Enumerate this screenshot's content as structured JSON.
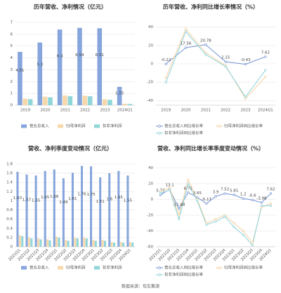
{
  "chart_data": [
    {
      "type": "bar",
      "title": "历年营收、净利情况（亿元）",
      "categories": [
        "2019",
        "2020",
        "2021",
        "2022",
        "2023",
        "2024Q1"
      ],
      "series": [
        {
          "name": "营业总收入",
          "color": "#86a5dc",
          "values": [
            4.51,
            5.3,
            6.4,
            6.54,
            6.51,
            1.55
          ]
        },
        {
          "name": "归母净利润",
          "color": "#f7d8ab",
          "values": [
            0.55,
            0.72,
            0.82,
            0.8,
            0.5,
            0.12
          ]
        },
        {
          "name": "扣非净利润",
          "color": "#8fd6d9",
          "values": [
            0.5,
            0.66,
            0.76,
            0.75,
            0.45,
            0.1
          ]
        }
      ],
      "ylim": [
        0,
        7
      ],
      "yticks": [
        0,
        1,
        2,
        3,
        4,
        5,
        6,
        7
      ],
      "grid": true
    },
    {
      "type": "line",
      "title": "历年营收、净利同比增长率情况（%）",
      "categories": [
        "2019",
        "2020",
        "2021",
        "2022",
        "2023",
        "2024Q1"
      ],
      "series": [
        {
          "name": "营业总收入同比增长率",
          "color": "#7493d4",
          "values": [
            -0.22,
            17.56,
            20.78,
            2.15,
            -0.43,
            7.62
          ]
        },
        {
          "name": "归母净利润同比增长率",
          "color": "#f5d19f",
          "values": [
            -15,
            38,
            12,
            -2,
            -38,
            -14
          ]
        },
        {
          "name": "扣非净利润同比增长率",
          "color": "#8bd2da",
          "values": [
            -20,
            35,
            10,
            -3,
            -36,
            -7
          ]
        }
      ],
      "ylim": [
        -45,
        45
      ],
      "yticks": [
        -40,
        -20,
        0,
        20,
        40
      ],
      "grid": true
    },
    {
      "type": "bar",
      "title": "营收、净利季度变动情况（亿元）",
      "categories": [
        "2021Q1",
        "2021Q2",
        "2021Q3",
        "2021Q4",
        "2022Q1",
        "2022Q2",
        "2022Q3",
        "2022Q4",
        "2023Q1",
        "2023Q2",
        "2023Q3",
        "2023Q4",
        "2024Q1"
      ],
      "series": [
        {
          "name": "营业总收入",
          "color": "#86a5dc",
          "values": [
            1.63,
            1.57,
            1.55,
            1.65,
            1.68,
            1.49,
            1.61,
            1.76,
            1.75,
            1.51,
            1.6,
            1.65,
            1.55
          ]
        },
        {
          "name": "归母净利润",
          "color": "#f7d8ab",
          "values": [
            0.25,
            0.2,
            0.18,
            0.16,
            0.22,
            0.15,
            0.2,
            0.2,
            0.15,
            0.15,
            0.1,
            0.1,
            0.1
          ]
        },
        {
          "name": "扣非净利润",
          "color": "#8fd6d9",
          "values": [
            0.23,
            0.18,
            0.16,
            0.14,
            0.2,
            0.13,
            0.18,
            0.18,
            0.13,
            0.13,
            0.09,
            0.09,
            0.09
          ]
        }
      ],
      "ylim": [
        0,
        1.8
      ],
      "yticks": [
        0,
        0.2,
        0.4,
        0.6,
        0.8,
        1,
        1.2,
        1.4,
        1.6,
        1.8
      ],
      "grid": true
    },
    {
      "type": "line",
      "title": "营收、净利同比增长率季度变动情况（%）",
      "categories": [
        "2021Q1",
        "2021Q2",
        "2021Q3",
        "2021Q4",
        "2022Q1",
        "2022Q2",
        "2022Q3",
        "2022Q4",
        "2023Q1",
        "2023Q2",
        "2023Q3",
        "2023Q4",
        "2024Q1"
      ],
      "series": [
        {
          "name": "营业总收入同比增长率",
          "color": "#7493d4",
          "values": [
            5.77,
            13.1,
            -11.88,
            8.72,
            2.65,
            -5.17,
            3.9,
            7.52,
            5.81,
            1.2,
            -0.6,
            -3.98,
            7.62
          ]
        },
        {
          "name": "归母净利润同比增长率",
          "color": "#f5d19f",
          "values": [
            10,
            15,
            -20,
            25,
            0,
            -30,
            -25,
            -20,
            -30,
            -40,
            -55,
            -10,
            -5
          ]
        },
        {
          "name": "扣非净利润同比增长率",
          "color": "#8bd2da",
          "values": [
            8,
            12,
            -25,
            20,
            -2,
            -32,
            -28,
            -22,
            -35,
            -45,
            -58,
            -8,
            -8
          ]
        }
      ],
      "ylim": [
        -60,
        45
      ],
      "yticks": [
        -60,
        -40,
        -20,
        0,
        20,
        40
      ],
      "grid": true
    }
  ],
  "footer": "数据来源：恒生聚源"
}
